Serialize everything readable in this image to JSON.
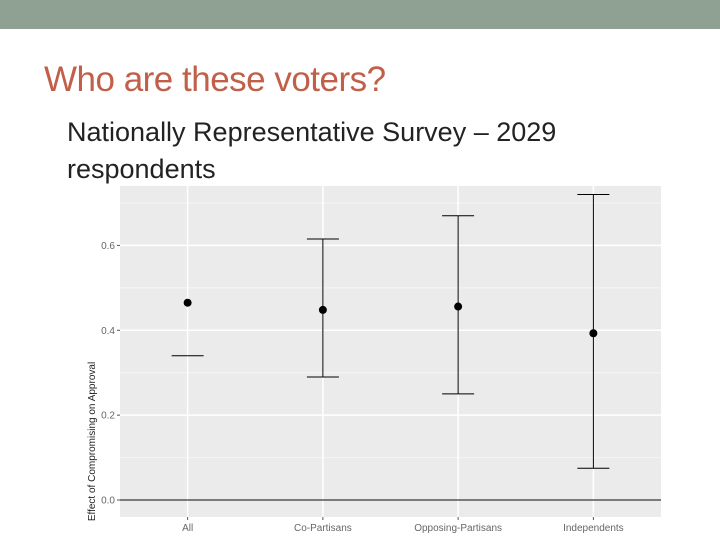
{
  "slide": {
    "title": "Who are these voters?",
    "body": "Nationally Representative Survey – 2029 respondents"
  },
  "colors": {
    "top_band": "#8fa192",
    "title": "#c0604a",
    "panel_background": "#ebebeb",
    "gridline": "#ffffff",
    "marks": "#000000"
  },
  "chart_data": {
    "type": "scatter",
    "title": "",
    "xlabel": "",
    "ylabel": "Effect of Compromising on Approval",
    "categories": [
      "All",
      "Co-Partisans",
      "Opposing-Partisans",
      "Independents"
    ],
    "estimates": [
      0.465,
      0.448,
      0.456,
      0.393
    ],
    "ci_low": [
      0.34,
      0.29,
      0.25,
      0.075
    ],
    "ci_high": [
      null,
      0.615,
      0.67,
      0.72
    ],
    "yticks": [
      0.0,
      0.2,
      0.4,
      0.6
    ],
    "ytick_labels": [
      "0.0",
      "0.2",
      "0.4",
      "0.6"
    ],
    "ylim": [
      -0.04,
      0.74
    ],
    "reference_line": 0.0,
    "grid": true
  }
}
